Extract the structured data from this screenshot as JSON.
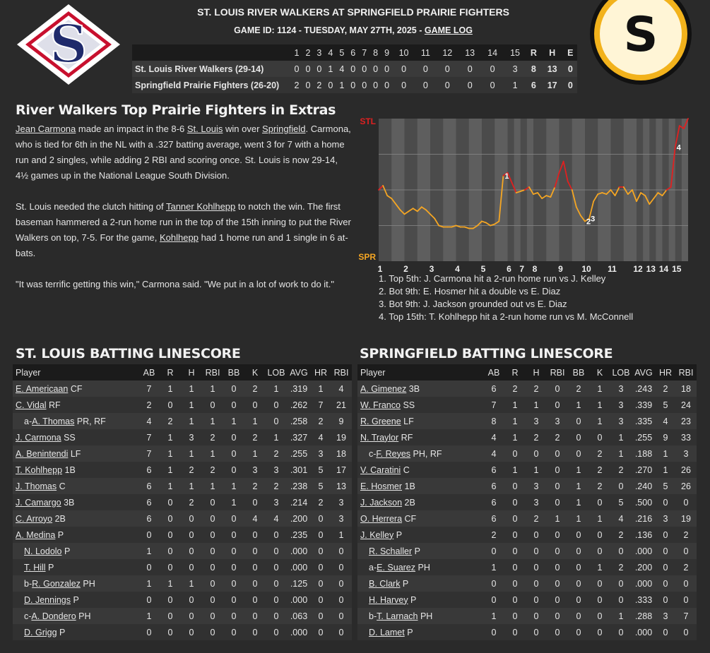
{
  "header": {
    "title": "ST. LOUIS RIVER WALKERS AT SPRINGFIELD PRAIRIE FIGHTERS",
    "game_info": "GAME ID: 1124 - TUESDAY, MAY 27TH, 2025 - ",
    "game_log_link": "GAME LOG",
    "logo_left_letter": "S",
    "logo_right_letter": "S"
  },
  "colors": {
    "background": "#2a2a2a",
    "stl_navy": "#1f2a6b",
    "stl_red": "#c8102e",
    "spr_gold": "#f2b21c",
    "chart_red": "#e02020",
    "chart_orange": "#f5a623"
  },
  "linescore": {
    "innings": [
      "1",
      "2",
      "3",
      "4",
      "5",
      "6",
      "7",
      "8",
      "9",
      "10",
      "11",
      "12",
      "13",
      "14",
      "15"
    ],
    "rhe_headers": [
      "R",
      "H",
      "E"
    ],
    "teams": [
      {
        "name": "St. Louis River Walkers (29-14)",
        "scores": [
          "0",
          "0",
          "0",
          "1",
          "4",
          "0",
          "0",
          "0",
          "0",
          "0",
          "0",
          "0",
          "0",
          "0",
          "3"
        ],
        "rhe": [
          "8",
          "13",
          "0"
        ]
      },
      {
        "name": "Springfield Prairie Fighters (26-20)",
        "scores": [
          "2",
          "0",
          "2",
          "0",
          "1",
          "0",
          "0",
          "0",
          "0",
          "0",
          "0",
          "0",
          "0",
          "0",
          "1"
        ],
        "rhe": [
          "6",
          "17",
          "0"
        ]
      }
    ]
  },
  "article": {
    "headline": "River Walkers Top Prairie Fighters in Extras",
    "p1": [
      {
        "t": "Jean Carmona",
        "link": true
      },
      {
        "t": " made an impact in the 8-6 "
      },
      {
        "t": "St. Louis",
        "link": true
      },
      {
        "t": " win over "
      },
      {
        "t": "Springfield",
        "link": true
      },
      {
        "t": ". Carmona, who is tied for 6th in the NL with a .327 batting average, went 3 for 7 with a home run and 2 singles, while adding 2 RBI and scoring once. St. Louis is now 29-14, 4½ games up in the National League South Division."
      }
    ],
    "p2": [
      {
        "t": "St. Louis needed the clutch hitting of "
      },
      {
        "t": "Tanner Kohlhepp",
        "link": true
      },
      {
        "t": " to notch the win. The first baseman hammered a 2-run home run in the top of the 15th inning to put the River Walkers on top, 7-5. For the game, "
      },
      {
        "t": "Kohlhepp",
        "link": true
      },
      {
        "t": " had 1 home run and 1 single in 6 at-bats."
      }
    ],
    "p3": [
      {
        "t": "\"It was terrific getting this win,\" Carmona said. \"We put in a lot of work to do it.\""
      }
    ]
  },
  "chart_data": {
    "type": "line",
    "title": "",
    "top_label": "STL",
    "bottom_label": "SPR",
    "x_labels": [
      "1",
      "2",
      "3",
      "4",
      "5",
      "6",
      "7",
      "8",
      "9",
      "10",
      "11",
      "12",
      "13",
      "14",
      "15"
    ],
    "inning_starts": [
      0,
      6,
      12,
      18,
      24,
      30,
      33,
      36,
      42,
      48,
      54,
      60,
      63,
      66,
      69
    ],
    "total_points": 73,
    "ylim": [
      0,
      100
    ],
    "win_prob_stl": [
      50,
      53,
      46,
      44,
      40,
      36,
      33,
      35,
      37,
      35,
      38,
      36,
      33,
      30,
      25,
      24,
      24,
      24,
      25,
      24,
      24,
      23,
      23,
      25,
      28,
      27,
      25,
      26,
      28,
      60,
      62,
      55,
      48,
      49,
      50,
      52,
      47,
      48,
      44,
      46,
      45,
      52,
      62,
      70,
      56,
      50,
      38,
      32,
      28,
      30,
      42,
      47,
      48,
      47,
      50,
      46,
      52,
      52,
      47,
      50,
      42,
      48,
      46,
      40,
      44,
      48,
      46,
      50,
      52,
      80,
      95,
      93,
      100
    ],
    "annotations": [
      {
        "label": "1",
        "index": 29
      },
      {
        "label": "2",
        "index": 48
      },
      {
        "label": "3",
        "index": 49
      },
      {
        "label": "4",
        "index": 69
      }
    ],
    "notes": [
      "1. Top 5th: J. Carmona hit a 2-run home run vs J. Kelley",
      "2. Bot 9th: E. Hosmer hit a double vs E. Diaz",
      "3. Bot 9th: J. Jackson grounded out vs E. Diaz",
      "4. Top 15th: T. Kohlhepp hit a 2-run home run vs M. McConnell"
    ]
  },
  "stl_batting": {
    "title": "ST. LOUIS BATTING LINESCORE",
    "headers": [
      "Player",
      "AB",
      "R",
      "H",
      "RBI",
      "BB",
      "K",
      "LOB",
      "AVG",
      "HR",
      "RBI"
    ],
    "rows": [
      {
        "prefix": "",
        "name": "E. Americaan",
        "pos": "CF",
        "sub": false,
        "stats": [
          "7",
          "1",
          "1",
          "1",
          "0",
          "2",
          "1",
          ".319",
          "1",
          "4"
        ]
      },
      {
        "prefix": "",
        "name": "C. Vidal",
        "pos": "RF",
        "sub": false,
        "stats": [
          "2",
          "0",
          "1",
          "0",
          "0",
          "0",
          "0",
          ".262",
          "7",
          "21"
        ]
      },
      {
        "prefix": "a-",
        "name": "A. Thomas",
        "pos": "PR, RF",
        "sub": true,
        "stats": [
          "4",
          "2",
          "1",
          "1",
          "1",
          "1",
          "0",
          ".258",
          "2",
          "9"
        ]
      },
      {
        "prefix": "",
        "name": "J. Carmona",
        "pos": "SS",
        "sub": false,
        "stats": [
          "7",
          "1",
          "3",
          "2",
          "0",
          "2",
          "1",
          ".327",
          "4",
          "19"
        ]
      },
      {
        "prefix": "",
        "name": "A. Benintendi",
        "pos": "LF",
        "sub": false,
        "stats": [
          "7",
          "1",
          "1",
          "1",
          "0",
          "1",
          "2",
          ".255",
          "3",
          "18"
        ]
      },
      {
        "prefix": "",
        "name": "T. Kohlhepp",
        "pos": "1B",
        "sub": false,
        "stats": [
          "6",
          "1",
          "2",
          "2",
          "0",
          "3",
          "3",
          ".301",
          "5",
          "17"
        ]
      },
      {
        "prefix": "",
        "name": "J. Thomas",
        "pos": "C",
        "sub": false,
        "stats": [
          "6",
          "1",
          "1",
          "1",
          "1",
          "2",
          "2",
          ".238",
          "5",
          "13"
        ]
      },
      {
        "prefix": "",
        "name": "J. Camargo",
        "pos": "3B",
        "sub": false,
        "stats": [
          "6",
          "0",
          "2",
          "0",
          "1",
          "0",
          "3",
          ".214",
          "2",
          "3"
        ]
      },
      {
        "prefix": "",
        "name": "C. Arroyo",
        "pos": "2B",
        "sub": false,
        "stats": [
          "6",
          "0",
          "0",
          "0",
          "0",
          "4",
          "4",
          ".200",
          "0",
          "3"
        ]
      },
      {
        "prefix": "",
        "name": "A. Medina",
        "pos": "P",
        "sub": false,
        "stats": [
          "0",
          "0",
          "0",
          "0",
          "0",
          "0",
          "0",
          ".235",
          "0",
          "1"
        ]
      },
      {
        "prefix": "",
        "name": "N. Lodolo",
        "pos": "P",
        "sub": true,
        "stats": [
          "1",
          "0",
          "0",
          "0",
          "0",
          "0",
          "0",
          ".000",
          "0",
          "0"
        ]
      },
      {
        "prefix": "",
        "name": "T. Hill",
        "pos": "P",
        "sub": true,
        "stats": [
          "0",
          "0",
          "0",
          "0",
          "0",
          "0",
          "0",
          ".000",
          "0",
          "0"
        ]
      },
      {
        "prefix": "b-",
        "name": "R. Gonzalez",
        "pos": "PH",
        "sub": true,
        "stats": [
          "1",
          "1",
          "1",
          "0",
          "0",
          "0",
          "0",
          ".125",
          "0",
          "0"
        ]
      },
      {
        "prefix": "",
        "name": "D. Jennings",
        "pos": "P",
        "sub": true,
        "stats": [
          "0",
          "0",
          "0",
          "0",
          "0",
          "0",
          "0",
          ".000",
          "0",
          "0"
        ]
      },
      {
        "prefix": "c-",
        "name": "A. Dondero",
        "pos": "PH",
        "sub": true,
        "stats": [
          "1",
          "0",
          "0",
          "0",
          "0",
          "0",
          "0",
          ".063",
          "0",
          "0"
        ]
      },
      {
        "prefix": "",
        "name": "D. Grigg",
        "pos": "P",
        "sub": true,
        "stats": [
          "0",
          "0",
          "0",
          "0",
          "0",
          "0",
          "0",
          ".000",
          "0",
          "0"
        ]
      }
    ]
  },
  "spr_batting": {
    "title": "SPRINGFIELD BATTING LINESCORE",
    "headers": [
      "Player",
      "AB",
      "R",
      "H",
      "RBI",
      "BB",
      "K",
      "LOB",
      "AVG",
      "HR",
      "RBI"
    ],
    "rows": [
      {
        "prefix": "",
        "name": "A. Gimenez",
        "pos": "3B",
        "sub": false,
        "stats": [
          "6",
          "2",
          "2",
          "0",
          "2",
          "1",
          "3",
          ".243",
          "2",
          "18"
        ]
      },
      {
        "prefix": "",
        "name": "W. Franco",
        "pos": "SS",
        "sub": false,
        "stats": [
          "7",
          "1",
          "1",
          "0",
          "1",
          "1",
          "3",
          ".339",
          "5",
          "24"
        ]
      },
      {
        "prefix": "",
        "name": "R. Greene",
        "pos": "LF",
        "sub": false,
        "stats": [
          "8",
          "1",
          "3",
          "3",
          "0",
          "1",
          "3",
          ".335",
          "4",
          "23"
        ]
      },
      {
        "prefix": "",
        "name": "N. Traylor",
        "pos": "RF",
        "sub": false,
        "stats": [
          "4",
          "1",
          "2",
          "2",
          "0",
          "0",
          "1",
          ".255",
          "9",
          "33"
        ]
      },
      {
        "prefix": "c-",
        "name": "F. Reyes",
        "pos": "PH, RF",
        "sub": true,
        "stats": [
          "4",
          "0",
          "0",
          "0",
          "0",
          "2",
          "1",
          ".188",
          "1",
          "3"
        ]
      },
      {
        "prefix": "",
        "name": "V. Caratini",
        "pos": "C",
        "sub": false,
        "stats": [
          "6",
          "1",
          "1",
          "0",
          "1",
          "2",
          "2",
          ".270",
          "1",
          "26"
        ]
      },
      {
        "prefix": "",
        "name": "E. Hosmer",
        "pos": "1B",
        "sub": false,
        "stats": [
          "6",
          "0",
          "3",
          "0",
          "1",
          "2",
          "0",
          ".240",
          "5",
          "26"
        ]
      },
      {
        "prefix": "",
        "name": "J. Jackson",
        "pos": "2B",
        "sub": false,
        "stats": [
          "6",
          "0",
          "3",
          "0",
          "1",
          "0",
          "5",
          ".500",
          "0",
          "0"
        ]
      },
      {
        "prefix": "",
        "name": "O. Herrera",
        "pos": "CF",
        "sub": false,
        "stats": [
          "6",
          "0",
          "2",
          "1",
          "1",
          "1",
          "4",
          ".216",
          "3",
          "19"
        ]
      },
      {
        "prefix": "",
        "name": "J. Kelley",
        "pos": "P",
        "sub": false,
        "stats": [
          "2",
          "0",
          "0",
          "0",
          "0",
          "0",
          "2",
          ".136",
          "0",
          "2"
        ]
      },
      {
        "prefix": "",
        "name": "R. Schaller",
        "pos": "P",
        "sub": true,
        "stats": [
          "0",
          "0",
          "0",
          "0",
          "0",
          "0",
          "0",
          ".000",
          "0",
          "0"
        ]
      },
      {
        "prefix": "a-",
        "name": "E. Suarez",
        "pos": "PH",
        "sub": true,
        "stats": [
          "1",
          "0",
          "0",
          "0",
          "0",
          "1",
          "2",
          ".200",
          "0",
          "2"
        ]
      },
      {
        "prefix": "",
        "name": "B. Clark",
        "pos": "P",
        "sub": true,
        "stats": [
          "0",
          "0",
          "0",
          "0",
          "0",
          "0",
          "0",
          ".000",
          "0",
          "0"
        ]
      },
      {
        "prefix": "",
        "name": "H. Harvey",
        "pos": "P",
        "sub": true,
        "stats": [
          "0",
          "0",
          "0",
          "0",
          "0",
          "0",
          "0",
          ".333",
          "0",
          "0"
        ]
      },
      {
        "prefix": "b-",
        "name": "T. Larnach",
        "pos": "PH",
        "sub": true,
        "stats": [
          "1",
          "0",
          "0",
          "0",
          "0",
          "0",
          "1",
          ".288",
          "3",
          "7"
        ]
      },
      {
        "prefix": "",
        "name": "D. Lamet",
        "pos": "P",
        "sub": true,
        "stats": [
          "0",
          "0",
          "0",
          "0",
          "0",
          "0",
          "0",
          ".000",
          "0",
          "0"
        ]
      }
    ]
  }
}
